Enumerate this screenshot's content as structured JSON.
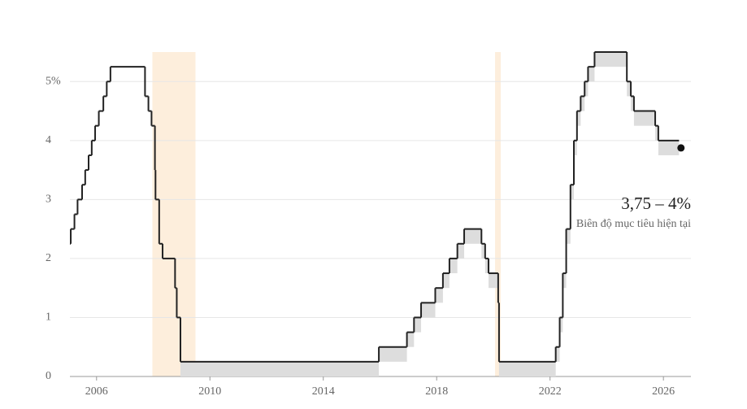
{
  "chart_data": {
    "type": "step",
    "xlim": [
      2005.06,
      2026.97
    ],
    "ylim": [
      0,
      5.5
    ],
    "xticks": [
      2006,
      2010,
      2014,
      2018,
      2022,
      2026
    ],
    "yticks": [
      0,
      1,
      2,
      3,
      4,
      {
        "value": 5,
        "label": "5%"
      }
    ],
    "grid": true,
    "recessions": [
      [
        2007.97,
        2009.49
      ],
      [
        2020.06,
        2020.26
      ]
    ],
    "recession_color": "#fdebd6",
    "x": [
      2005.06,
      2005.09,
      2005.22,
      2005.33,
      2005.49,
      2005.6,
      2005.72,
      2005.83,
      2005.95,
      2006.08,
      2006.24,
      2006.36,
      2006.49,
      2007.71,
      2007.83,
      2007.94,
      2008.06,
      2008.08,
      2008.21,
      2008.33,
      2008.77,
      2008.83,
      2008.96,
      2015.96,
      2016.95,
      2017.2,
      2017.45,
      2017.95,
      2018.22,
      2018.45,
      2018.73,
      2018.97,
      2019.58,
      2019.71,
      2019.83,
      2020.17,
      2020.2,
      2022.2,
      2022.34,
      2022.45,
      2022.57,
      2022.72,
      2022.84,
      2022.95,
      2023.08,
      2023.22,
      2023.34,
      2023.57,
      2024.71,
      2024.85,
      2024.96,
      2025.71,
      2025.82,
      2026.55
    ],
    "series": [
      {
        "color": "#222222",
        "values": [
          2.25,
          2.5,
          2.75,
          3.0,
          3.25,
          3.5,
          3.75,
          4.0,
          4.25,
          4.5,
          4.75,
          5.0,
          5.25,
          4.75,
          4.5,
          4.25,
          3.5,
          3.0,
          2.25,
          2.0,
          1.5,
          1.0,
          0.25,
          0.5,
          0.75,
          1.0,
          1.25,
          1.5,
          1.75,
          2.0,
          2.25,
          2.5,
          2.25,
          2.0,
          1.75,
          1.25,
          0.25,
          0.5,
          1.0,
          1.75,
          2.5,
          3.25,
          4.0,
          4.5,
          4.75,
          5.0,
          5.25,
          5.5,
          5.0,
          4.75,
          4.5,
          4.25,
          4.0,
          4.0
        ]
      },
      {
        "color": "#dddddd",
        "values": [
          2.25,
          2.5,
          2.75,
          3.0,
          3.25,
          3.5,
          3.75,
          4.0,
          4.25,
          4.5,
          4.75,
          5.0,
          5.25,
          4.75,
          4.5,
          4.25,
          3.5,
          3.0,
          2.25,
          2.0,
          1.5,
          1.0,
          0,
          0.25,
          0.5,
          0.75,
          1.0,
          1.25,
          1.5,
          1.75,
          2.0,
          2.25,
          2.0,
          1.75,
          1.5,
          1.0,
          0,
          0.25,
          0.75,
          1.5,
          2.25,
          3.0,
          3.75,
          4.25,
          4.5,
          4.75,
          5.0,
          5.25,
          4.75,
          4.5,
          4.25,
          4.0,
          3.75,
          3.75
        ]
      }
    ],
    "marker": {
      "x": 2026.62,
      "y": 3.875
    },
    "annotation": "3,75 – 4%",
    "annotation_sub": "Biên độ mục tiêu hiện tại"
  }
}
